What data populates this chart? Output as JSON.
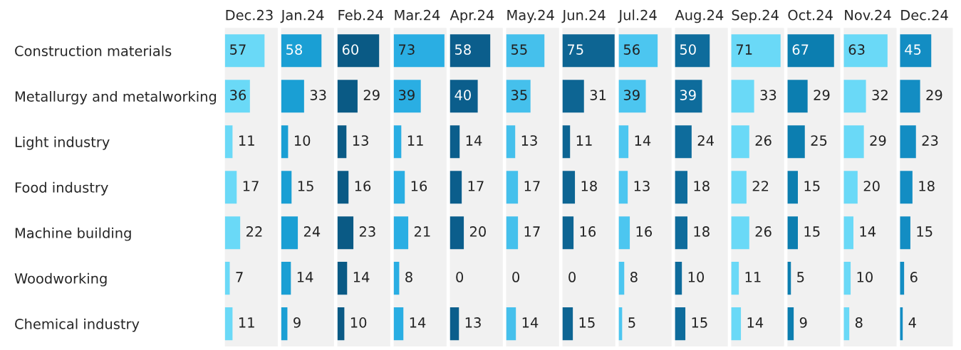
{
  "chart_data": [
    {
      "type": "bar",
      "orientation": "horizontal",
      "data_labels": true,
      "xlim": [
        0,
        76
      ],
      "tick_labels": "y",
      "title": "Dec.23",
      "color": "#6ad9f7",
      "categories": [
        "Construction materials",
        "Metallurgy and metalworking",
        "Light industry",
        "Food industry",
        "Machine building",
        "Woodworking",
        "Chemical industry"
      ],
      "values": [
        57,
        36,
        11,
        17,
        22,
        7,
        11
      ]
    },
    {
      "type": "bar",
      "orientation": "horizontal",
      "data_labels": true,
      "xlim": [
        0,
        76
      ],
      "title": "Jan.24",
      "color": "#1a9fd4",
      "categories": [
        null,
        null,
        null,
        null,
        null,
        null,
        null
      ],
      "values": [
        58,
        33,
        10,
        15,
        24,
        14,
        9
      ]
    },
    {
      "type": "bar",
      "orientation": "horizontal",
      "data_labels": true,
      "xlim": [
        0,
        76
      ],
      "title": "Feb.24",
      "color": "#0a5a85",
      "categories": [
        null,
        null,
        null,
        null,
        null,
        null,
        null
      ],
      "values": [
        60,
        29,
        13,
        16,
        23,
        14,
        10
      ]
    },
    {
      "type": "bar",
      "orientation": "horizontal",
      "data_labels": true,
      "xlim": [
        0,
        76
      ],
      "title": "Mar.24",
      "color": "#2aaee3",
      "categories": [
        null,
        null,
        null,
        null,
        null,
        null,
        null
      ],
      "values": [
        73,
        39,
        11,
        16,
        21,
        8,
        14
      ]
    },
    {
      "type": "bar",
      "orientation": "horizontal",
      "data_labels": true,
      "xlim": [
        0,
        76
      ],
      "title": "Apr.24",
      "color": "#0b5e8c",
      "categories": [
        null,
        null,
        null,
        null,
        null,
        null,
        null
      ],
      "values": [
        58,
        40,
        14,
        17,
        20,
        0,
        13
      ]
    },
    {
      "type": "bar",
      "orientation": "horizontal",
      "data_labels": true,
      "xlim": [
        0,
        76
      ],
      "title": "May.24",
      "color": "#45c0ec",
      "categories": [
        null,
        null,
        null,
        null,
        null,
        null,
        null
      ],
      "values": [
        55,
        35,
        13,
        17,
        17,
        0,
        14
      ]
    },
    {
      "type": "bar",
      "orientation": "horizontal",
      "data_labels": true,
      "xlim": [
        0,
        76
      ],
      "title": "Jun.24",
      "color": "#0d6593",
      "categories": [
        null,
        null,
        null,
        null,
        null,
        null,
        null
      ],
      "values": [
        75,
        31,
        11,
        18,
        16,
        0,
        15
      ]
    },
    {
      "type": "bar",
      "orientation": "horizontal",
      "data_labels": true,
      "xlim": [
        0,
        76
      ],
      "title": "Jul.24",
      "color": "#4cc6f0",
      "categories": [
        null,
        null,
        null,
        null,
        null,
        null,
        null
      ],
      "values": [
        56,
        39,
        14,
        13,
        16,
        8,
        5
      ]
    },
    {
      "type": "bar",
      "orientation": "horizontal",
      "data_labels": true,
      "xlim": [
        0,
        76
      ],
      "title": "Aug.24",
      "color": "#0e6c9c",
      "categories": [
        null,
        null,
        null,
        null,
        null,
        null,
        null
      ],
      "values": [
        50,
        39,
        24,
        18,
        18,
        10,
        15
      ]
    },
    {
      "type": "bar",
      "orientation": "horizontal",
      "data_labels": true,
      "xlim": [
        0,
        76
      ],
      "title": "Sep.24",
      "color": "#6ad9f7",
      "categories": [
        null,
        null,
        null,
        null,
        null,
        null,
        null
      ],
      "values": [
        71,
        33,
        26,
        22,
        26,
        11,
        14
      ]
    },
    {
      "type": "bar",
      "orientation": "horizontal",
      "data_labels": true,
      "xlim": [
        0,
        76
      ],
      "title": "Oct.24",
      "color": "#0c7eb0",
      "categories": [
        null,
        null,
        null,
        null,
        null,
        null,
        null
      ],
      "values": [
        67,
        29,
        25,
        15,
        15,
        5,
        9
      ]
    },
    {
      "type": "bar",
      "orientation": "horizontal",
      "data_labels": true,
      "xlim": [
        0,
        76
      ],
      "title": "Nov.24",
      "color": "#6ad9f7",
      "categories": [
        null,
        null,
        null,
        null,
        null,
        null,
        null
      ],
      "values": [
        63,
        32,
        29,
        20,
        14,
        10,
        8
      ]
    },
    {
      "type": "bar",
      "orientation": "horizontal",
      "data_labels": true,
      "xlim": [
        0,
        76
      ],
      "title": "Dec.24",
      "color": "#138dc3",
      "categories": [
        null,
        null,
        null,
        null,
        null,
        null,
        null
      ],
      "values": [
        45,
        29,
        23,
        18,
        15,
        6,
        4
      ]
    }
  ]
}
